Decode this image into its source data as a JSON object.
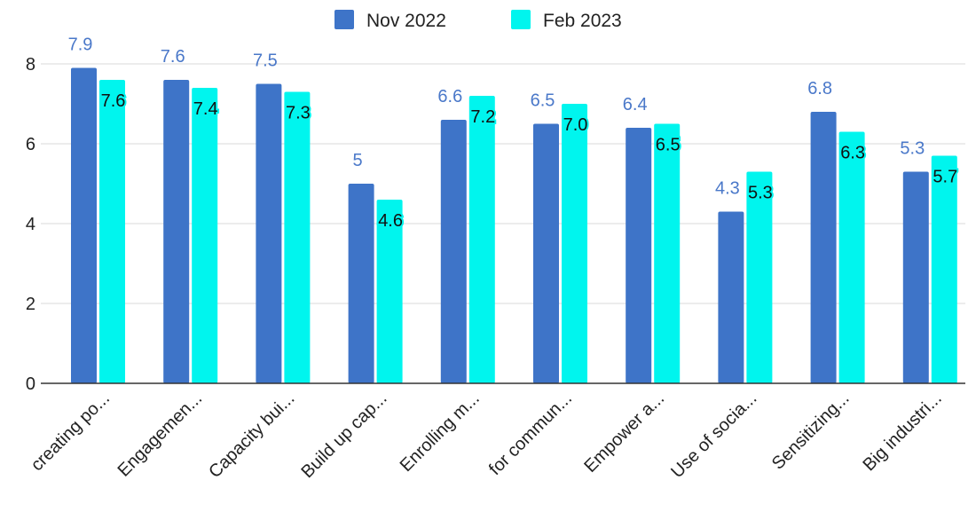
{
  "chart_data": {
    "type": "bar",
    "categories": [
      "creating po...",
      "Engagemen...",
      "Capacity bui...",
      "Build up cap...",
      "Enrolling m...",
      "for commun...",
      "Empower a...",
      "Use of socia...",
      "Sensitizing...",
      "Big industri..."
    ],
    "series": [
      {
        "name": "Nov 2022",
        "color": "#3e74c8",
        "values": [
          7.9,
          7.6,
          7.5,
          5,
          6.6,
          6.5,
          6.4,
          4.3,
          6.8,
          5.3
        ],
        "data_labels": [
          "7.9",
          "7.6",
          "7.5",
          "5",
          "6.6",
          "6.5",
          "6.4",
          "4.3",
          "6.8",
          "5.3"
        ]
      },
      {
        "name": "Feb 2023",
        "color": "#00f5ee",
        "values": [
          7.6,
          7.4,
          7.3,
          4.6,
          7.2,
          7.0,
          6.5,
          5.3,
          6.3,
          5.7
        ],
        "data_labels": [
          "7.6",
          "7.4",
          "7.3",
          "4.6",
          "7.2",
          "7.0",
          "6.5",
          "5.3",
          "6.3",
          "5.7"
        ]
      }
    ],
    "y_ticks": [
      "0",
      "2",
      "4",
      "6",
      "8"
    ],
    "ylim": [
      0,
      8
    ],
    "grid": true,
    "legend": "top-center"
  }
}
